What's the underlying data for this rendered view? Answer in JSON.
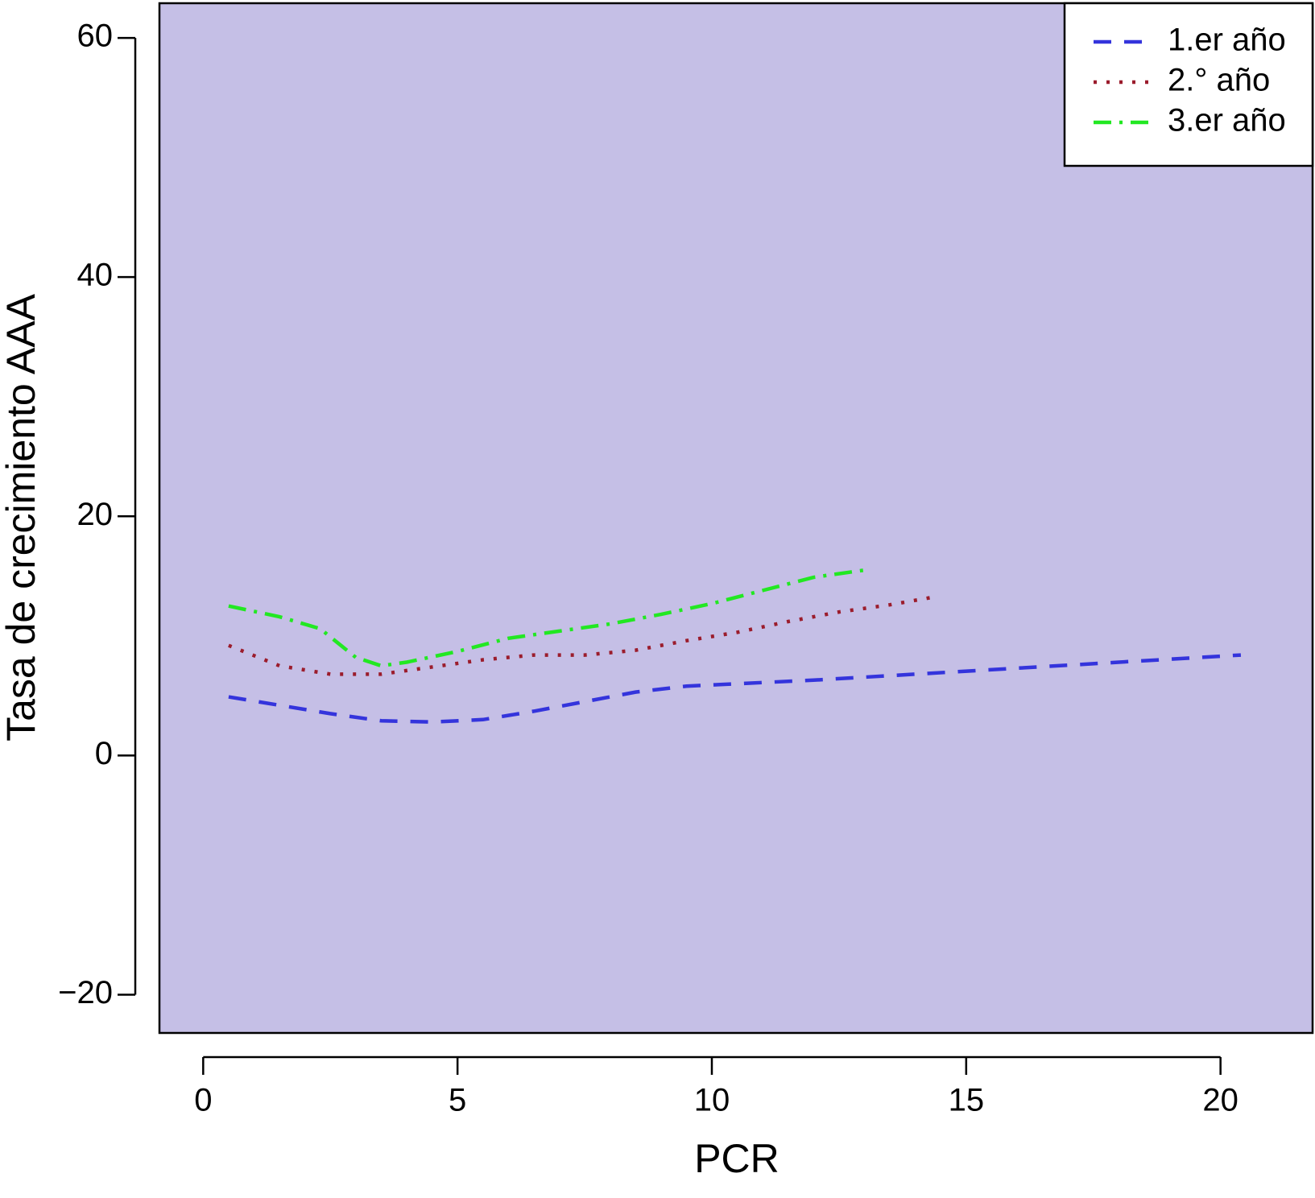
{
  "chart_data": {
    "type": "line",
    "x_label": "PCR",
    "y_label": "Tasa de crecimiento AAA",
    "xlim": [
      -0.86,
      21.81
    ],
    "ylim": [
      -23.2,
      62.9
    ],
    "xticks": [
      0,
      5,
      10,
      15,
      20
    ],
    "yticks": [
      {
        "value": -20,
        "label": "−20"
      },
      0,
      20,
      40,
      60
    ],
    "background": "#c5bfe6",
    "legend": "top-right",
    "series": [
      {
        "name": "1.er año",
        "color": "#3434dc",
        "dash": "22 16",
        "x": [
          0.5,
          1.5,
          2.5,
          3.5,
          4.5,
          5.5,
          6.5,
          7.5,
          8.5,
          9.5,
          10.5,
          12,
          14,
          16,
          18,
          20.4
        ],
        "values": [
          4.9,
          4.2,
          3.5,
          2.9,
          2.8,
          3.0,
          3.7,
          4.5,
          5.3,
          5.8,
          6.0,
          6.3,
          6.8,
          7.3,
          7.8,
          8.4
        ]
      },
      {
        "name": "2.° año",
        "color": "#9b1c2c",
        "dash": "4 12",
        "x": [
          0.5,
          1.5,
          2.5,
          3.5,
          4.5,
          5.5,
          6.5,
          7.5,
          8.5,
          9.5,
          10.5,
          11.5,
          12.5,
          13.5,
          14.3
        ],
        "values": [
          9.2,
          7.5,
          6.8,
          6.8,
          7.4,
          8.0,
          8.4,
          8.4,
          8.8,
          9.6,
          10.3,
          11.2,
          12.0,
          12.6,
          13.2
        ]
      },
      {
        "name": "3.er año",
        "color": "#22e822",
        "dash": "22 10 4 10",
        "x": [
          0.5,
          1.5,
          2.3,
          3.0,
          3.5,
          4.0,
          5.0,
          6.0,
          7.0,
          8.0,
          9.0,
          10.0,
          11.0,
          12.0,
          13.0
        ],
        "values": [
          12.5,
          11.6,
          10.6,
          8.2,
          7.5,
          7.8,
          8.7,
          9.8,
          10.4,
          11.0,
          11.8,
          12.7,
          13.8,
          14.9,
          15.5
        ]
      }
    ]
  }
}
